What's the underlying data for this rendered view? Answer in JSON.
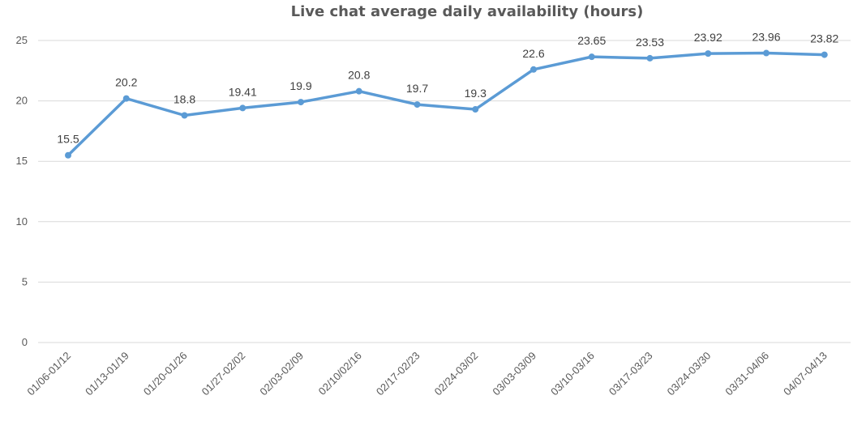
{
  "chart_data": {
    "type": "line",
    "title": "Live chat average daily availability (hours)",
    "xlabel": "",
    "ylabel": "",
    "ylim": [
      0,
      25
    ],
    "yticks": [
      0,
      5,
      10,
      15,
      20,
      25
    ],
    "grid": true,
    "legend": "none",
    "line_color": "#5b9bd5",
    "categories": [
      "01/06-01/12",
      "01/13-01/19",
      "01/20-01/26",
      "01/27-02/02",
      "02/03-02/09",
      "02/10/02/16",
      "02/17-02/23",
      "02/24-03/02",
      "03/03-03/09",
      "03/10-03/16",
      "03/17-03/23",
      "03/24-03/30",
      "03/31-04/06",
      "04/07-04/13"
    ],
    "series": [
      {
        "values": [
          15.5,
          20.2,
          18.8,
          19.41,
          19.9,
          20.8,
          19.7,
          19.3,
          22.6,
          23.65,
          23.53,
          23.92,
          23.96,
          23.82
        ]
      }
    ]
  }
}
